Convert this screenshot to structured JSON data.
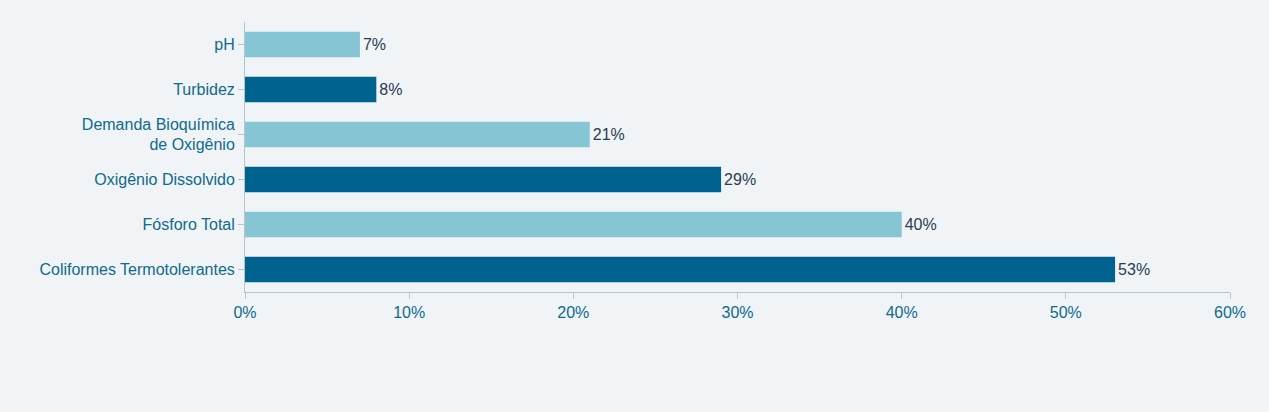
{
  "chart_data": {
    "type": "bar",
    "orientation": "horizontal",
    "categories": [
      "pH",
      "Turbidez",
      "Demanda Bioquímica de Oxigênio",
      "Oxigênio Dissolvido",
      "Fósforo Total",
      "Coliformes Termotolerantes"
    ],
    "values": [
      7,
      8,
      21,
      29,
      40,
      53
    ],
    "value_labels": [
      "7%",
      "8%",
      "21%",
      "29%",
      "40%",
      "53%"
    ],
    "colors": [
      "#86c5d4",
      "#00628e",
      "#86c5d4",
      "#00628e",
      "#86c5d4",
      "#00628e"
    ],
    "xlim": [
      0,
      60
    ],
    "xticks": [
      {
        "value": 0,
        "label": "0%"
      },
      {
        "value": 10,
        "label": "10%"
      },
      {
        "value": 20,
        "label": "20%"
      },
      {
        "value": 30,
        "label": "30%"
      },
      {
        "value": 40,
        "label": "40%"
      },
      {
        "value": 50,
        "label": "50%"
      },
      {
        "value": 60,
        "label": "60%"
      }
    ],
    "grid": false,
    "data_labels": true
  }
}
